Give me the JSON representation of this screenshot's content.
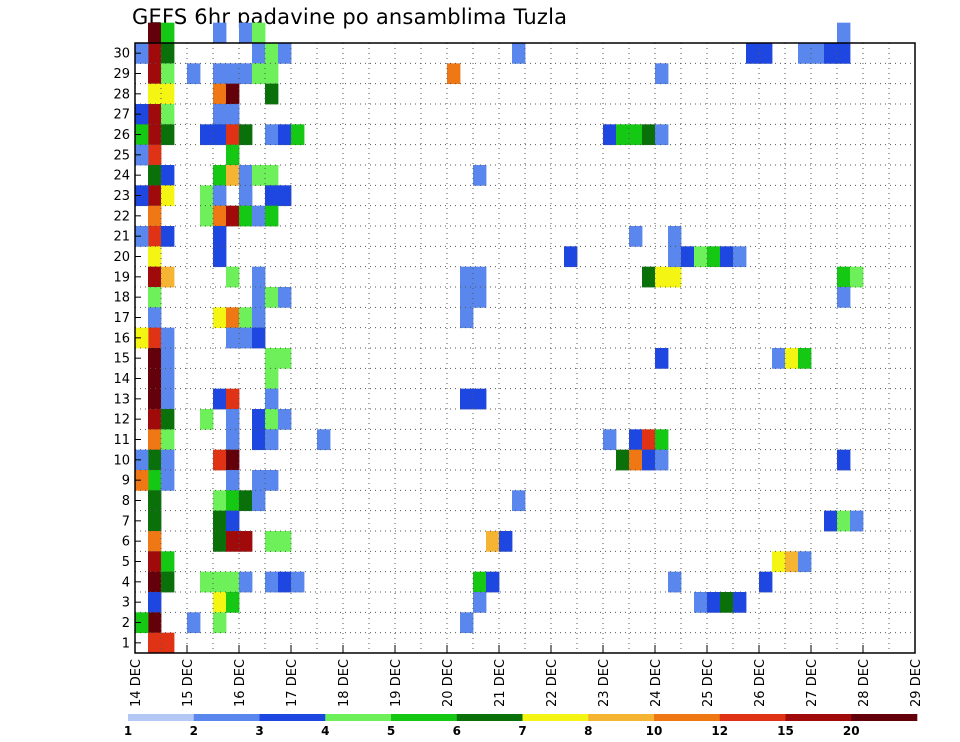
{
  "chart_data": {
    "type": "heatmap",
    "title": "GEFS 6hr padavine po ansamblima Tuzla",
    "xlabel": "",
    "ylabel": "",
    "x_tick_labels": [
      "14 DEC",
      "15 DEC",
      "16 DEC",
      "17 DEC",
      "18 DEC",
      "19 DEC",
      "20 DEC",
      "21 DEC",
      "22 DEC",
      "23 DEC",
      "24 DEC",
      "25 DEC",
      "26 DEC",
      "27 DEC",
      "28 DEC",
      "29 DEC"
    ],
    "y_tick_labels": [
      "1",
      "2",
      "3",
      "4",
      "5",
      "6",
      "7",
      "8",
      "9",
      "10",
      "11",
      "12",
      "13",
      "14",
      "15",
      "16",
      "17",
      "18",
      "19",
      "20",
      "21",
      "22",
      "23",
      "24",
      "25",
      "26",
      "27",
      "28",
      "29",
      "30"
    ],
    "xlim": [
      "14 DEC 00Z",
      "29 DEC 00Z"
    ],
    "ylim": [
      0,
      30
    ],
    "grid": "dotted",
    "legend": {
      "placement": "bottom",
      "tick_labels": [
        "1",
        "2",
        "3",
        "4",
        "5",
        "6",
        "7",
        "8",
        "10",
        "12",
        "15",
        "20"
      ],
      "colors": [
        "#b4c8f5",
        "#5a87ee",
        "#1e46e0",
        "#6ef05a",
        "#14c814",
        "#0a700a",
        "#f5f514",
        "#f5b432",
        "#f07814",
        "#e03214",
        "#a00a0a",
        "#64000a"
      ]
    },
    "x_unit": "hour offset from 14 DEC 00Z (6-hour steps)",
    "cells": [
      [
        1,
        30,
        11
      ],
      [
        1,
        29,
        10
      ],
      [
        1,
        28,
        10
      ],
      [
        1,
        27,
        6
      ],
      [
        1,
        26,
        10
      ],
      [
        1,
        25,
        10
      ],
      [
        1,
        24,
        9
      ],
      [
        1,
        23,
        5
      ],
      [
        1,
        22,
        10
      ],
      [
        1,
        21,
        8
      ],
      [
        1,
        20,
        9
      ],
      [
        1,
        19,
        6
      ],
      [
        1,
        18,
        10
      ],
      [
        1,
        17,
        3
      ],
      [
        1,
        16,
        1
      ],
      [
        1,
        15,
        9
      ],
      [
        1,
        14,
        11
      ],
      [
        1,
        13,
        11
      ],
      [
        1,
        12,
        11
      ],
      [
        1,
        11,
        10
      ],
      [
        1,
        10,
        8
      ],
      [
        1,
        9,
        5
      ],
      [
        1,
        8,
        4
      ],
      [
        1,
        7,
        5
      ],
      [
        1,
        6,
        5
      ],
      [
        1,
        5,
        8
      ],
      [
        1,
        4,
        10
      ],
      [
        1,
        3,
        11
      ],
      [
        1,
        2,
        2
      ],
      [
        1,
        1,
        11
      ],
      [
        1,
        0,
        9
      ],
      [
        0,
        29,
        1
      ],
      [
        0,
        26,
        2
      ],
      [
        0,
        25,
        4
      ],
      [
        0,
        24,
        1
      ],
      [
        0,
        22,
        2
      ],
      [
        0,
        20,
        1
      ],
      [
        0,
        15,
        6
      ],
      [
        0,
        9,
        1
      ],
      [
        0,
        8,
        8
      ],
      [
        0,
        1,
        4
      ],
      [
        2,
        30,
        4
      ],
      [
        2,
        29,
        5
      ],
      [
        2,
        28,
        3
      ],
      [
        2,
        27,
        6
      ],
      [
        2,
        26,
        3
      ],
      [
        2,
        25,
        5
      ],
      [
        2,
        23,
        2
      ],
      [
        2,
        22,
        6
      ],
      [
        2,
        20,
        2
      ],
      [
        2,
        18,
        7
      ],
      [
        2,
        15,
        1
      ],
      [
        2,
        14,
        1
      ],
      [
        2,
        13,
        1
      ],
      [
        2,
        12,
        1
      ],
      [
        2,
        11,
        5
      ],
      [
        2,
        10,
        3
      ],
      [
        2,
        9,
        1
      ],
      [
        2,
        8,
        1
      ],
      [
        2,
        4,
        4
      ],
      [
        2,
        3,
        5
      ],
      [
        2,
        0,
        9
      ],
      [
        4,
        1,
        1
      ],
      [
        4,
        28,
        1
      ],
      [
        5,
        22,
        3
      ],
      [
        5,
        21,
        3
      ],
      [
        5,
        11,
        3
      ],
      [
        5,
        3,
        3
      ],
      [
        5,
        25,
        2
      ],
      [
        6,
        30,
        1
      ],
      [
        6,
        28,
        1
      ],
      [
        6,
        27,
        8
      ],
      [
        6,
        26,
        1
      ],
      [
        6,
        25,
        2
      ],
      [
        6,
        23,
        4
      ],
      [
        6,
        22,
        1
      ],
      [
        6,
        21,
        8
      ],
      [
        6,
        20,
        2
      ],
      [
        6,
        19,
        2
      ],
      [
        6,
        16,
        6
      ],
      [
        6,
        12,
        2
      ],
      [
        6,
        9,
        9
      ],
      [
        6,
        7,
        3
      ],
      [
        6,
        6,
        5
      ],
      [
        6,
        5,
        5
      ],
      [
        6,
        3,
        3
      ],
      [
        6,
        2,
        6
      ],
      [
        6,
        1,
        3
      ],
      [
        7,
        28,
        1
      ],
      [
        7,
        27,
        11
      ],
      [
        7,
        26,
        1
      ],
      [
        7,
        25,
        9
      ],
      [
        7,
        24,
        4
      ],
      [
        7,
        23,
        7
      ],
      [
        7,
        21,
        10
      ],
      [
        7,
        18,
        3
      ],
      [
        7,
        16,
        8
      ],
      [
        7,
        15,
        1
      ],
      [
        7,
        12,
        9
      ],
      [
        7,
        11,
        1
      ],
      [
        7,
        10,
        1
      ],
      [
        7,
        9,
        11
      ],
      [
        7,
        8,
        1
      ],
      [
        7,
        7,
        4
      ],
      [
        7,
        6,
        2
      ],
      [
        7,
        5,
        10
      ],
      [
        7,
        3,
        3
      ],
      [
        7,
        2,
        4
      ],
      [
        8,
        30,
        1
      ],
      [
        8,
        28,
        1
      ],
      [
        8,
        25,
        5
      ],
      [
        8,
        23,
        1
      ],
      [
        8,
        22,
        1
      ],
      [
        8,
        21,
        4
      ],
      [
        8,
        16,
        3
      ],
      [
        8,
        15,
        1
      ],
      [
        8,
        7,
        5
      ],
      [
        8,
        5,
        10
      ],
      [
        8,
        3,
        1
      ],
      [
        9,
        30,
        3
      ],
      [
        9,
        29,
        1
      ],
      [
        9,
        28,
        3
      ],
      [
        9,
        23,
        3
      ],
      [
        9,
        21,
        1
      ],
      [
        9,
        18,
        1
      ],
      [
        9,
        17,
        1
      ],
      [
        9,
        16,
        1
      ],
      [
        9,
        15,
        2
      ],
      [
        9,
        11,
        2
      ],
      [
        9,
        10,
        2
      ],
      [
        9,
        7,
        1
      ],
      [
        9,
        8,
        1
      ],
      [
        10,
        29,
        3
      ],
      [
        10,
        28,
        3
      ],
      [
        10,
        27,
        5
      ],
      [
        10,
        25,
        1
      ],
      [
        10,
        23,
        3
      ],
      [
        10,
        22,
        2
      ],
      [
        10,
        21,
        4
      ],
      [
        10,
        17,
        3
      ],
      [
        10,
        14,
        3
      ],
      [
        10,
        13,
        3
      ],
      [
        10,
        12,
        1
      ],
      [
        10,
        11,
        3
      ],
      [
        10,
        10,
        1
      ],
      [
        10,
        8,
        1
      ],
      [
        10,
        5,
        3
      ],
      [
        10,
        3,
        1
      ],
      [
        11,
        29,
        1
      ],
      [
        11,
        25,
        2
      ],
      [
        11,
        22,
        2
      ],
      [
        11,
        17,
        1
      ],
      [
        11,
        14,
        3
      ],
      [
        11,
        11,
        1
      ],
      [
        11,
        5,
        3
      ],
      [
        11,
        3,
        2
      ],
      [
        12,
        25,
        4
      ],
      [
        12,
        3,
        1
      ],
      [
        14,
        10,
        1
      ],
      [
        24,
        28,
        8
      ],
      [
        25,
        18,
        1
      ],
      [
        25,
        17,
        1
      ],
      [
        25,
        16,
        1
      ],
      [
        25,
        12,
        2
      ],
      [
        25,
        1,
        1
      ],
      [
        26,
        23,
        1
      ],
      [
        26,
        18,
        1
      ],
      [
        26,
        17,
        1
      ],
      [
        26,
        12,
        2
      ],
      [
        26,
        3,
        4
      ],
      [
        26,
        2,
        1
      ],
      [
        27,
        3,
        2
      ],
      [
        27,
        5,
        7
      ],
      [
        28,
        5,
        2
      ],
      [
        29,
        29,
        1
      ],
      [
        29,
        7,
        1
      ],
      [
        33,
        19,
        2
      ],
      [
        36,
        25,
        2
      ],
      [
        36,
        10,
        1
      ],
      [
        37,
        25,
        4
      ],
      [
        37,
        9,
        5
      ],
      [
        38,
        25,
        4
      ],
      [
        38,
        20,
        1
      ],
      [
        38,
        10,
        2
      ],
      [
        38,
        9,
        8
      ],
      [
        39,
        18,
        5
      ],
      [
        39,
        10,
        9
      ],
      [
        39,
        9,
        2
      ],
      [
        39,
        25,
        5
      ],
      [
        40,
        28,
        1
      ],
      [
        40,
        18,
        6
      ],
      [
        40,
        14,
        2
      ],
      [
        40,
        10,
        4
      ],
      [
        40,
        9,
        1
      ],
      [
        40,
        25,
        1
      ],
      [
        41,
        18,
        6
      ],
      [
        41,
        20,
        1
      ],
      [
        41,
        19,
        1
      ],
      [
        41,
        3,
        1
      ],
      [
        42,
        19,
        2
      ],
      [
        43,
        19,
        3
      ],
      [
        43,
        2,
        1
      ],
      [
        44,
        19,
        4
      ],
      [
        44,
        2,
        2
      ],
      [
        45,
        19,
        2
      ],
      [
        45,
        2,
        5
      ],
      [
        46,
        19,
        1
      ],
      [
        46,
        2,
        2
      ],
      [
        47,
        29,
        2
      ],
      [
        48,
        29,
        2
      ],
      [
        48,
        3,
        2
      ],
      [
        49,
        14,
        1
      ],
      [
        49,
        4,
        6
      ],
      [
        50,
        14,
        6
      ],
      [
        50,
        4,
        7
      ],
      [
        51,
        14,
        4
      ],
      [
        51,
        29,
        1
      ],
      [
        51,
        4,
        1
      ],
      [
        52,
        29,
        1
      ],
      [
        53,
        29,
        2
      ],
      [
        53,
        6,
        2
      ],
      [
        54,
        30,
        1
      ],
      [
        54,
        29,
        2
      ],
      [
        54,
        18,
        4
      ],
      [
        54,
        17,
        1
      ],
      [
        54,
        6,
        3
      ],
      [
        54,
        9,
        2
      ],
      [
        55,
        18,
        3
      ],
      [
        55,
        6,
        1
      ]
    ]
  }
}
